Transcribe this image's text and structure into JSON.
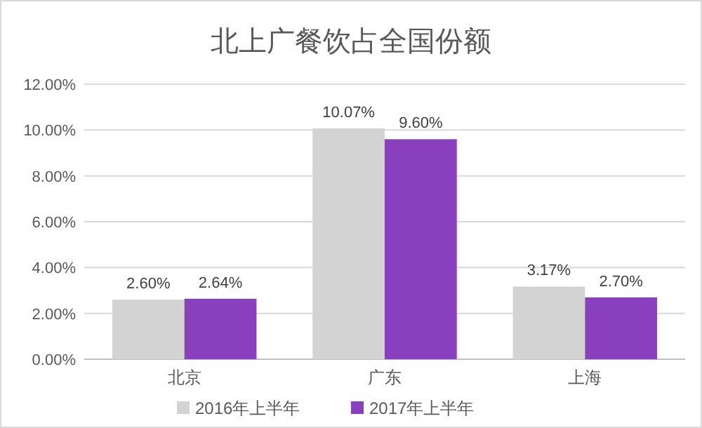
{
  "chart_data": {
    "type": "bar",
    "title": "北上广餐饮占全国份额",
    "categories": [
      "北京",
      "广东",
      "上海"
    ],
    "series": [
      {
        "name": "2016年上半年",
        "color": "#d3d3d3",
        "values": [
          2.6,
          10.07,
          3.17
        ],
        "value_labels": [
          "2.60%",
          "10.07%",
          "3.17%"
        ]
      },
      {
        "name": "2017年上半年",
        "color": "#8a3fbf",
        "values": [
          2.64,
          9.6,
          2.7
        ],
        "value_labels": [
          "2.64%",
          "9.60%",
          "2.70%"
        ]
      }
    ],
    "ylim": [
      0,
      12
    ],
    "yticks": [
      {
        "value": 0,
        "label": "0.00%"
      },
      {
        "value": 2,
        "label": "2.00%"
      },
      {
        "value": 4,
        "label": "4.00%"
      },
      {
        "value": 6,
        "label": "6.00%"
      },
      {
        "value": 8,
        "label": "8.00%"
      },
      {
        "value": 10,
        "label": "10.00%"
      },
      {
        "value": 12,
        "label": "12.00%"
      }
    ],
    "grid": "y",
    "legend": "bottom"
  }
}
